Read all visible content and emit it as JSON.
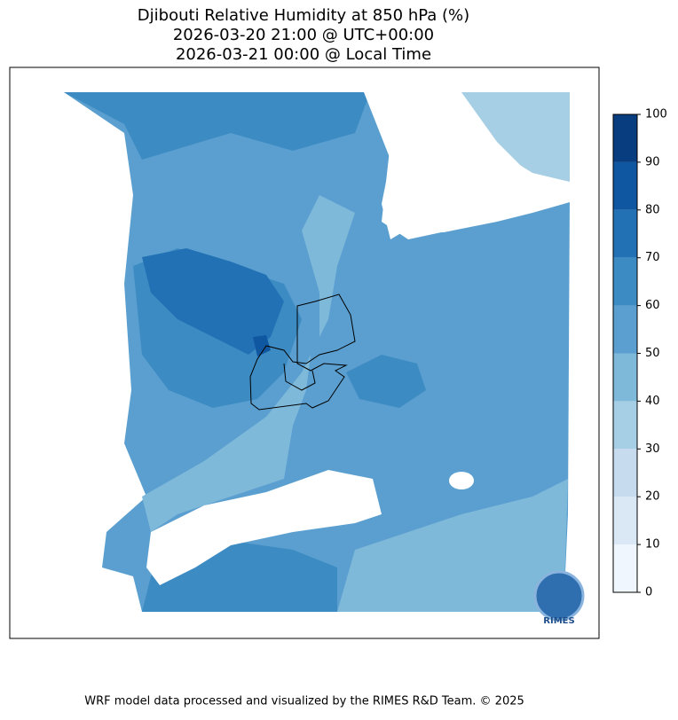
{
  "title_lines": [
    "Djibouti Relative Humidity at 850 hPa (%)",
    "2026-03-20 21:00 @ UTC+00:00",
    "2026-03-21 00:00 @ Local Time"
  ],
  "colorbar": {
    "ticks": [
      0,
      10,
      20,
      30,
      40,
      50,
      60,
      70,
      80,
      90,
      100
    ],
    "colors": [
      "#f0f6fd",
      "#dae8f5",
      "#c7dbef",
      "#a6cee4",
      "#7fb9da",
      "#5a9fcf",
      "#3d8bc3",
      "#2271b5",
      "#0f58a1",
      "#083d80"
    ]
  },
  "logo": "RIMES",
  "footer": "WRF model data processed and visualized by the RIMES R&D Team. © 2025"
}
